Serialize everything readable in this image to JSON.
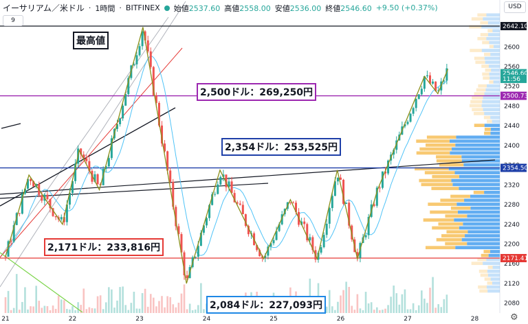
{
  "header": {
    "symbol": "イーサリアム／米ドル",
    "interval": "1時間",
    "exchange": "BITFINEX",
    "open_label": "始値",
    "open": "2537.60",
    "high_label": "高値",
    "high": "2558.00",
    "low_label": "安値",
    "low": "2536.00",
    "close_label": "終値",
    "close": "2546.60",
    "change": "+9.50 (+0.37%)",
    "sub_indicator": "9",
    "currency": "USD"
  },
  "annotations": {
    "ath": "最高値",
    "a2500": "2,500ドル：269,250円",
    "a2354": "2,354ドル：253,525円",
    "a2171": "2,171ドル：233,816円",
    "a2084": "2,084ドル：227,093円"
  },
  "colors": {
    "up": "#26a69a",
    "down": "#ef5350",
    "vp_blue": "#5aa9f0",
    "vp_orange": "#f8c66a",
    "ma": "#4fc3f7",
    "zigzag": "#8a8f1a",
    "purple": "#9c27b0",
    "blue": "#1e3fa8",
    "red": "#e53935"
  },
  "chart_data": {
    "type": "candlestick",
    "ylim": [
      2060,
      2670
    ],
    "y_ticks": [
      2080,
      2120,
      2160,
      2200,
      2240,
      2280,
      2320,
      2360,
      2400,
      2440,
      2480,
      2520,
      2560,
      2600,
      2640
    ],
    "x_ticks": [
      "21",
      "22",
      "23",
      "24",
      "25",
      "26",
      "27",
      "28"
    ],
    "price_badges": [
      {
        "label": "2642.10",
        "value": 2642.1,
        "color": "#131722"
      },
      {
        "label": "2546.60",
        "value": 2546.6,
        "color": "#26a69a"
      },
      {
        "label": "11:56",
        "value": 2535,
        "color": "#26a69a"
      },
      {
        "label": "2500.73",
        "value": 2500.73,
        "color": "#9c27b0"
      },
      {
        "label": "2354.50",
        "value": 2354.5,
        "color": "#1e3fa8"
      },
      {
        "label": "2171.41",
        "value": 2171.41,
        "color": "#e53935"
      }
    ],
    "horizontal_levels": [
      {
        "value": 2642.1,
        "color": "#131722"
      },
      {
        "value": 2500.73,
        "color": "#9c27b0"
      },
      {
        "value": 2354.5,
        "color": "#1e3fa8"
      },
      {
        "value": 2171.41,
        "color": "#e53935"
      }
    ],
    "zigzag": [
      [
        21.0,
        2175
      ],
      [
        21.35,
        2340
      ],
      [
        21.85,
        2240
      ],
      [
        22.1,
        2390
      ],
      [
        22.4,
        2310
      ],
      [
        23.05,
        2640
      ],
      [
        23.7,
        2120
      ],
      [
        24.2,
        2350
      ],
      [
        24.85,
        2170
      ],
      [
        25.25,
        2290
      ],
      [
        25.65,
        2170
      ],
      [
        25.95,
        2350
      ],
      [
        26.25,
        2170
      ],
      [
        26.55,
        2310
      ],
      [
        27.25,
        2540
      ],
      [
        27.45,
        2505
      ],
      [
        27.6,
        2555
      ]
    ]
  }
}
